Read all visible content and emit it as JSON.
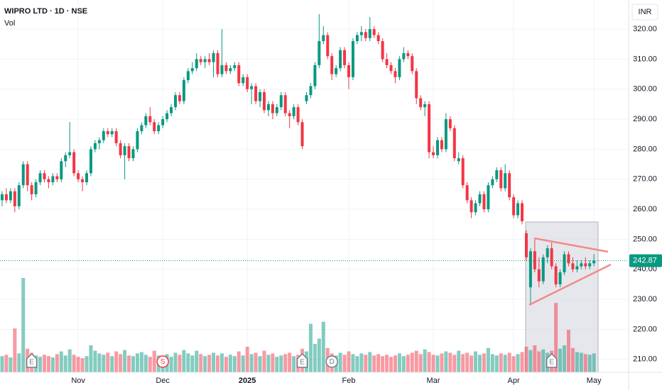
{
  "chart_data": {
    "type": "candlestick",
    "title": "WIPRO LTD · 1D · NSE",
    "volume_label": "Vol",
    "currency": "INR",
    "up_color": "#089981",
    "down_color": "#f23645",
    "ylim": [
      205.7,
      329.7
    ],
    "yticks": [
      {
        "value": 210,
        "label": "210.00"
      },
      {
        "value": 220,
        "label": "220.00"
      },
      {
        "value": 230,
        "label": "230.00"
      },
      {
        "value": 240,
        "label": "240.00"
      },
      {
        "value": 250,
        "label": "250.00"
      },
      {
        "value": 260,
        "label": "260.00"
      },
      {
        "value": 270,
        "label": "270.00"
      },
      {
        "value": 280,
        "label": "280.00"
      },
      {
        "value": 290,
        "label": "290.00"
      },
      {
        "value": 300,
        "label": "300.00"
      },
      {
        "value": 310,
        "label": "310.00"
      },
      {
        "value": 320,
        "label": "320.00"
      }
    ],
    "xlim": [
      -0.5,
      148.2
    ],
    "xticks": [
      {
        "value": 18,
        "label": "Nov"
      },
      {
        "value": 38,
        "label": "Dec"
      },
      {
        "value": 58,
        "label": "2025"
      },
      {
        "value": 82,
        "label": "Feb"
      },
      {
        "value": 102,
        "label": "Mar"
      },
      {
        "value": 121,
        "label": "Apr"
      },
      {
        "value": 140,
        "label": "May"
      }
    ],
    "vlim": [
      0,
      20
    ],
    "ohlc": [
      [
        263,
        266,
        261,
        265
      ],
      [
        265,
        267,
        262,
        263
      ],
      [
        263,
        267,
        262,
        266
      ],
      [
        266,
        267,
        259,
        261
      ],
      [
        261,
        269,
        260,
        268
      ],
      [
        268,
        276,
        267,
        275
      ],
      [
        275,
        276,
        266,
        268
      ],
      [
        268,
        269,
        263,
        265
      ],
      [
        265,
        270,
        264,
        269
      ],
      [
        269,
        273,
        268,
        272
      ],
      [
        272,
        273,
        269,
        270
      ],
      [
        270,
        271,
        267,
        269
      ],
      [
        269,
        272,
        268,
        271
      ],
      [
        271,
        272,
        269,
        270
      ],
      [
        270,
        277,
        269,
        276
      ],
      [
        276,
        279,
        274,
        278
      ],
      [
        278,
        289,
        277,
        279
      ],
      [
        279,
        280,
        271,
        272
      ],
      [
        272,
        273,
        269,
        270
      ],
      [
        270,
        271,
        266,
        269
      ],
      [
        269,
        273,
        268,
        272
      ],
      [
        272,
        281,
        271,
        280
      ],
      [
        280,
        283,
        279,
        282
      ],
      [
        282,
        284,
        280,
        283
      ],
      [
        283,
        287,
        282,
        286
      ],
      [
        286,
        287,
        284,
        285
      ],
      [
        285,
        287,
        284,
        286
      ],
      [
        286,
        287,
        281,
        282
      ],
      [
        282,
        283,
        277,
        278
      ],
      [
        278,
        282,
        270,
        281
      ],
      [
        281,
        282,
        276,
        277
      ],
      [
        277,
        281,
        276,
        280
      ],
      [
        280,
        287,
        279,
        286
      ],
      [
        286,
        289,
        285,
        288
      ],
      [
        288,
        292,
        287,
        291
      ],
      [
        291,
        294,
        288,
        289
      ],
      [
        289,
        290,
        285,
        286
      ],
      [
        286,
        289,
        285,
        288
      ],
      [
        288,
        291,
        287,
        290
      ],
      [
        290,
        293,
        289,
        292
      ],
      [
        292,
        295,
        291,
        294
      ],
      [
        294,
        299,
        293,
        298
      ],
      [
        298,
        299,
        295,
        296
      ],
      [
        296,
        304,
        295,
        303
      ],
      [
        303,
        307,
        302,
        306
      ],
      [
        306,
        309,
        305,
        307
      ],
      [
        307,
        312,
        306,
        310
      ],
      [
        310,
        311,
        308,
        309
      ],
      [
        309,
        311,
        307,
        310
      ],
      [
        310,
        312,
        308,
        309
      ],
      [
        309,
        313,
        304,
        312
      ],
      [
        312,
        313,
        304,
        305
      ],
      [
        305,
        320,
        304,
        308
      ],
      [
        308,
        309,
        305,
        306
      ],
      [
        306,
        308,
        305,
        307
      ],
      [
        307,
        309,
        306,
        308
      ],
      [
        308,
        309,
        301,
        302
      ],
      [
        302,
        305,
        301,
        304
      ],
      [
        304,
        305,
        299,
        300
      ],
      [
        300,
        302,
        295,
        301
      ],
      [
        301,
        302,
        295,
        296
      ],
      [
        296,
        300,
        294,
        299
      ],
      [
        299,
        300,
        292,
        293
      ],
      [
        293,
        296,
        291,
        295
      ],
      [
        295,
        296,
        290,
        292
      ],
      [
        292,
        295,
        291,
        294
      ],
      [
        294,
        299,
        293,
        298
      ],
      [
        298,
        299,
        291,
        292
      ],
      [
        292,
        293,
        287,
        291
      ],
      [
        291,
        295,
        290,
        294
      ],
      [
        294,
        295,
        288,
        289
      ],
      [
        289,
        290,
        280,
        281
      ],
      [
        296,
        299,
        295,
        298
      ],
      [
        298,
        302,
        297,
        301
      ],
      [
        301,
        309,
        300,
        308
      ],
      [
        308,
        325,
        307,
        316
      ],
      [
        316,
        321,
        315,
        318
      ],
      [
        318,
        319,
        310,
        311
      ],
      [
        311,
        312,
        303,
        305
      ],
      [
        305,
        308,
        304,
        307
      ],
      [
        307,
        314,
        306,
        313
      ],
      [
        313,
        314,
        307,
        308
      ],
      [
        308,
        309,
        300,
        304
      ],
      [
        304,
        317,
        303,
        316
      ],
      [
        316,
        319,
        315,
        318
      ],
      [
        318,
        321,
        316,
        319
      ],
      [
        319,
        320,
        316,
        317
      ],
      [
        317,
        324,
        316,
        320
      ],
      [
        320,
        321,
        317,
        318
      ],
      [
        318,
        319,
        315,
        316
      ],
      [
        316,
        317,
        309,
        310
      ],
      [
        310,
        312,
        307,
        308
      ],
      [
        308,
        309,
        305,
        306
      ],
      [
        306,
        307,
        302,
        304
      ],
      [
        304,
        311,
        303,
        310
      ],
      [
        310,
        314,
        309,
        312
      ],
      [
        312,
        313,
        310,
        311
      ],
      [
        311,
        312,
        305,
        306
      ],
      [
        306,
        307,
        295,
        297
      ],
      [
        297,
        298,
        293,
        294
      ],
      [
        294,
        296,
        291,
        295
      ],
      [
        295,
        296,
        277,
        279
      ],
      [
        279,
        281,
        277,
        278
      ],
      [
        278,
        284,
        277,
        283
      ],
      [
        283,
        284,
        279,
        280
      ],
      [
        280,
        292,
        279,
        290
      ],
      [
        290,
        291,
        286,
        287
      ],
      [
        287,
        288,
        276,
        277
      ],
      [
        276,
        279,
        275,
        277
      ],
      [
        277,
        278,
        267,
        268
      ],
      [
        268,
        269,
        262,
        263
      ],
      [
        263,
        264,
        257,
        259
      ],
      [
        259,
        263,
        258,
        262
      ],
      [
        262,
        266,
        261,
        265
      ],
      [
        265,
        266,
        259,
        260
      ],
      [
        260,
        269,
        259,
        268
      ],
      [
        268,
        271,
        267,
        270
      ],
      [
        270,
        274,
        269,
        273
      ],
      [
        273,
        274,
        266,
        267
      ],
      [
        267,
        275,
        266,
        272
      ],
      [
        272,
        273,
        263,
        264
      ],
      [
        264,
        265,
        257,
        258
      ],
      [
        258,
        263,
        257,
        262
      ],
      [
        262,
        263,
        255,
        256
      ],
      [
        252,
        253,
        243,
        244
      ],
      [
        234,
        247,
        228,
        246
      ],
      [
        246,
        250,
        239,
        240
      ],
      [
        240,
        244,
        234,
        236
      ],
      [
        236,
        245,
        235,
        244
      ],
      [
        244,
        248,
        242,
        247
      ],
      [
        247,
        249,
        240,
        241
      ],
      [
        241,
        242,
        234,
        235
      ],
      [
        235,
        240,
        234,
        239
      ],
      [
        239,
        246,
        238,
        245
      ],
      [
        245,
        246,
        241,
        242
      ],
      [
        242,
        244,
        239,
        240
      ],
      [
        240,
        243,
        239,
        241
      ],
      [
        241,
        243,
        240,
        242
      ],
      [
        242,
        244,
        240,
        241
      ],
      [
        241,
        243,
        240,
        242
      ],
      [
        242,
        245,
        241,
        242.87
      ]
    ],
    "volume": [
      2.4,
      2.6,
      2.2,
      6.5,
      2.8,
      14,
      3.5,
      2.9,
      2.5,
      2.3,
      2.6,
      2.4,
      2.2,
      2.7,
      3.1,
      2.5,
      3.4,
      2.6,
      2.3,
      2.1,
      2.4,
      4,
      3.2,
      2.8,
      2.6,
      2.9,
      2.4,
      3.1,
      2.7,
      3.3,
      2.5,
      2.4,
      2.8,
      3,
      2.6,
      2.3,
      3.2,
      2.5,
      2.4,
      2.7,
      2.3,
      2.9,
      2.6,
      3.3,
      2.8,
      2.5,
      3.2,
      2.7,
      2.4,
      2.6,
      2.9,
      2.5,
      2.8,
      2.3,
      2.6,
      2.4,
      3.1,
      2.5,
      3.8,
      2.7,
      2.9,
      2.4,
      3.2,
      2.6,
      2.8,
      2.3,
      2.5,
      2.7,
      2.9,
      2.4,
      2.6,
      3.5,
      3.1,
      7.2,
      4.2,
      5,
      7.5,
      3.6,
      2.8,
      2.5,
      2.9,
      2.6,
      3.1,
      2.7,
      2.4,
      2.8,
      2.6,
      3,
      2.5,
      2.7,
      2.4,
      2.6,
      2.3,
      2.5,
      2.8,
      2.4,
      2.6,
      2.9,
      3.2,
      2.7,
      3.4,
      3,
      2.6,
      2.5,
      2.8,
      3.1,
      2.9,
      2.6,
      3.2,
      2.7,
      2.9,
      2.5,
      3.1,
      2.6,
      2.8,
      3.6,
      2.7,
      2.5,
      2.8,
      2.6,
      2.9,
      2.4,
      2.7,
      3,
      3.8,
      3.3,
      4,
      3.1,
      3.4,
      2.9,
      3.2,
      10.3,
      3.5,
      4,
      6.3,
      3.6,
      3,
      2.9,
      2.7,
      2.6,
      2.8
    ],
    "events": [
      {
        "label": "E",
        "index": 7
      },
      {
        "label": "S",
        "index": 38
      },
      {
        "label": "E",
        "index": 71
      },
      {
        "label": "D",
        "index": 78
      },
      {
        "label": "E",
        "index": 130
      }
    ]
  }
}
